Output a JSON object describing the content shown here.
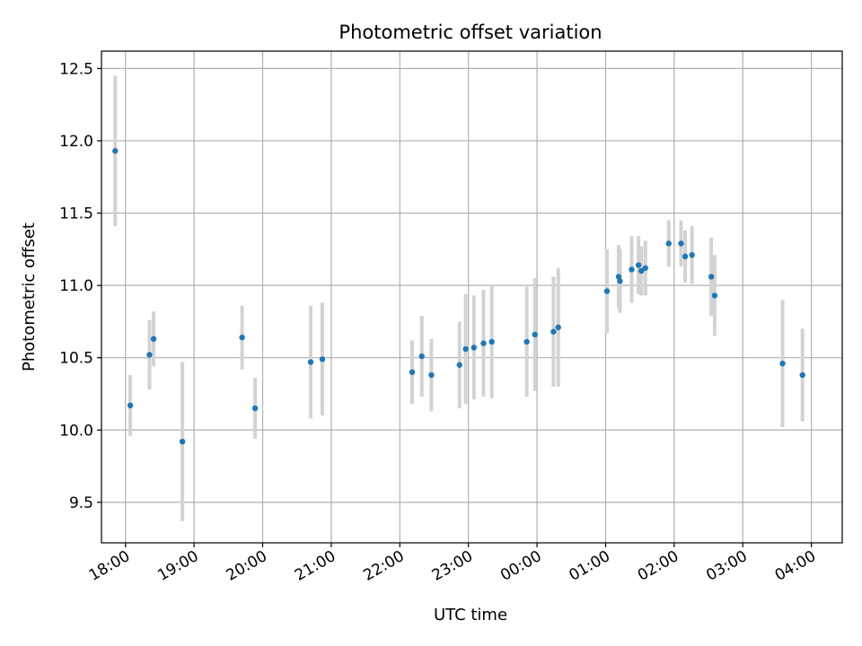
{
  "chart_data": {
    "type": "scatter",
    "title": "Photometric offset variation",
    "xlabel": "UTC time",
    "ylabel": "Photometric offset",
    "x_unit": "UTC hours on a continuous axis (values past 24 wrap past midnight)",
    "xlim": [
      17.65,
      28.45
    ],
    "ylim": [
      9.22,
      12.62
    ],
    "x_ticks": [
      {
        "value": 18,
        "label": "18:00"
      },
      {
        "value": 19,
        "label": "19:00"
      },
      {
        "value": 20,
        "label": "20:00"
      },
      {
        "value": 21,
        "label": "21:00"
      },
      {
        "value": 22,
        "label": "22:00"
      },
      {
        "value": 23,
        "label": "23:00"
      },
      {
        "value": 24,
        "label": "00:00"
      },
      {
        "value": 25,
        "label": "01:00"
      },
      {
        "value": 26,
        "label": "02:00"
      },
      {
        "value": 27,
        "label": "03:00"
      },
      {
        "value": 28,
        "label": "04:00"
      }
    ],
    "y_ticks": [
      {
        "value": 9.5,
        "label": "9.5"
      },
      {
        "value": 10.0,
        "label": "10.0"
      },
      {
        "value": 10.5,
        "label": "10.5"
      },
      {
        "value": 11.0,
        "label": "11.0"
      },
      {
        "value": 11.5,
        "label": "11.5"
      },
      {
        "value": 12.0,
        "label": "12.0"
      },
      {
        "value": 12.5,
        "label": "12.5"
      }
    ],
    "grid": true,
    "marker_color": "#1f77b4",
    "errorbar_color": "#d3d3d3",
    "points": [
      {
        "x": 17.85,
        "y": 11.93,
        "err": 0.52
      },
      {
        "x": 18.07,
        "y": 10.17,
        "err": 0.21
      },
      {
        "x": 18.35,
        "y": 10.52,
        "err": 0.24
      },
      {
        "x": 18.41,
        "y": 10.63,
        "err": 0.19
      },
      {
        "x": 18.83,
        "y": 9.92,
        "err": 0.55
      },
      {
        "x": 19.7,
        "y": 10.64,
        "err": 0.22
      },
      {
        "x": 19.89,
        "y": 10.15,
        "err": 0.21
      },
      {
        "x": 20.7,
        "y": 10.47,
        "err": 0.39
      },
      {
        "x": 20.87,
        "y": 10.49,
        "err": 0.39
      },
      {
        "x": 22.18,
        "y": 10.4,
        "err": 0.22
      },
      {
        "x": 22.32,
        "y": 10.51,
        "err": 0.28
      },
      {
        "x": 22.46,
        "y": 10.38,
        "err": 0.25
      },
      {
        "x": 22.87,
        "y": 10.45,
        "err": 0.3
      },
      {
        "x": 22.96,
        "y": 10.56,
        "err": 0.38
      },
      {
        "x": 23.08,
        "y": 10.57,
        "err": 0.36
      },
      {
        "x": 23.22,
        "y": 10.6,
        "err": 0.37
      },
      {
        "x": 23.34,
        "y": 10.61,
        "err": 0.39
      },
      {
        "x": 23.85,
        "y": 10.61,
        "err": 0.38
      },
      {
        "x": 23.97,
        "y": 10.66,
        "err": 0.39
      },
      {
        "x": 24.24,
        "y": 10.68,
        "err": 0.38
      },
      {
        "x": 24.31,
        "y": 10.71,
        "err": 0.41
      },
      {
        "x": 25.02,
        "y": 10.96,
        "err": 0.29
      },
      {
        "x": 25.19,
        "y": 11.06,
        "err": 0.22
      },
      {
        "x": 25.21,
        "y": 11.03,
        "err": 0.22
      },
      {
        "x": 25.38,
        "y": 11.11,
        "err": 0.23
      },
      {
        "x": 25.48,
        "y": 11.14,
        "err": 0.2
      },
      {
        "x": 25.52,
        "y": 11.1,
        "err": 0.17
      },
      {
        "x": 25.58,
        "y": 11.12,
        "err": 0.19
      },
      {
        "x": 25.92,
        "y": 11.29,
        "err": 0.16
      },
      {
        "x": 26.1,
        "y": 11.29,
        "err": 0.16
      },
      {
        "x": 26.16,
        "y": 11.2,
        "err": 0.18
      },
      {
        "x": 26.26,
        "y": 11.21,
        "err": 0.2
      },
      {
        "x": 26.54,
        "y": 11.06,
        "err": 0.27
      },
      {
        "x": 26.59,
        "y": 10.93,
        "err": 0.28
      },
      {
        "x": 27.58,
        "y": 10.46,
        "err": 0.44
      },
      {
        "x": 27.87,
        "y": 10.38,
        "err": 0.32
      }
    ]
  }
}
